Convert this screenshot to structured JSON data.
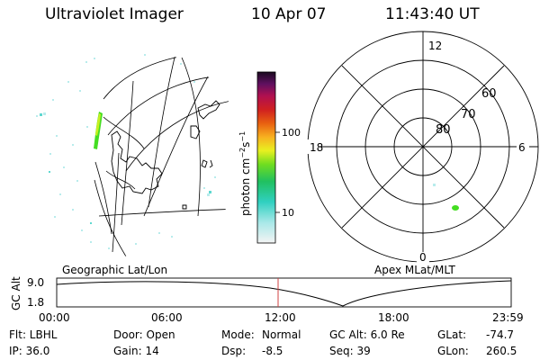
{
  "header": {
    "title": "Ultraviolet Imager",
    "date": "10 Apr 07",
    "time": "11:43:40 UT"
  },
  "colorbar": {
    "unit": "photon cm",
    "unit_exp": "−2",
    "unit_s": "s",
    "unit_s_exp": "−1",
    "ticks": [
      "100",
      "10"
    ]
  },
  "polar_plot": {
    "lat_labels": [
      "80",
      "70",
      "60"
    ],
    "mlt_labels": {
      "top": "12",
      "right": "6",
      "bottom": "0",
      "left": "18"
    }
  },
  "panel_labels": {
    "left": "Geographic Lat/Lon",
    "right": "Apex MLat/MLT"
  },
  "altitude_plot": {
    "axis_label": "GC Alt",
    "y_ticks": [
      "9.0",
      "1.8"
    ],
    "x_ticks": [
      "00:00",
      "06:00",
      "12:00",
      "18:00",
      "23:59"
    ],
    "current_time_marker": "11:43:40"
  },
  "info": {
    "filter": "Flt: LBHL",
    "door": "Door: Open",
    "mode_label": "Mode:",
    "mode_value": "Normal",
    "gc_alt": "GC Alt: 6.0 Re",
    "glat_label": "GLat:",
    "glat_value": "-74.7",
    "ip": "IP: 36.0",
    "gain": "Gain: 14",
    "dsp_label": "Dsp:",
    "dsp_value": "-8.5",
    "seq": "Seq: 39",
    "glon_label": "GLon:",
    "glon_value": "260.5"
  },
  "colors": {
    "marker": "#d04040",
    "aurora_green": "#44dd22"
  }
}
